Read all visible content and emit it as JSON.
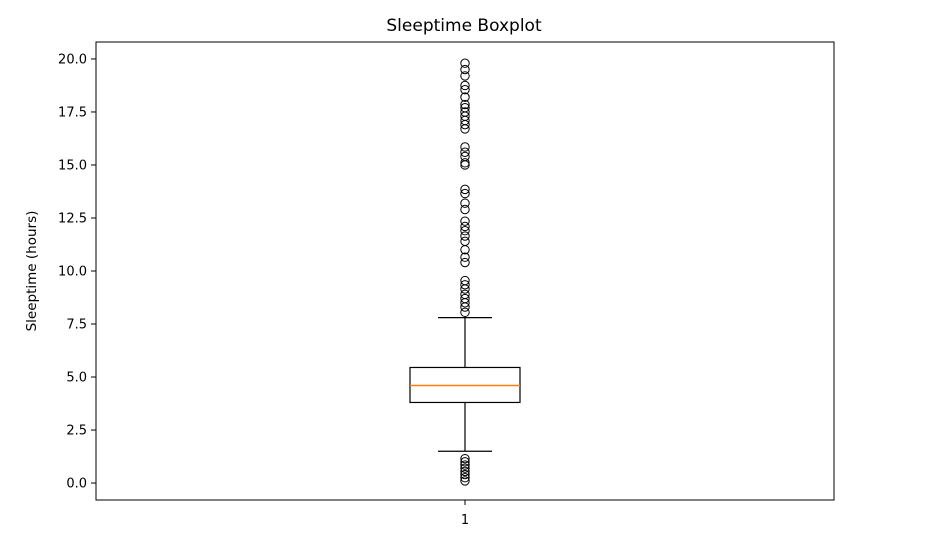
{
  "chart_data": {
    "type": "boxplot",
    "title": "Sleeptime Boxplot",
    "xlabel": "",
    "ylabel": "Sleeptime (hours)",
    "x_categories": [
      "1"
    ],
    "ylim": [
      -0.8,
      20.8
    ],
    "yticks": [
      0.0,
      2.5,
      5.0,
      7.5,
      10.0,
      12.5,
      15.0,
      17.5,
      20.0
    ],
    "ytick_labels": [
      "0.0",
      "2.5",
      "5.0",
      "7.5",
      "10.0",
      "12.5",
      "15.0",
      "17.5",
      "20.0"
    ],
    "grid": false,
    "box": {
      "category": "1",
      "whisker_low": 1.5,
      "q1": 3.8,
      "median": 4.6,
      "q3": 5.45,
      "whisker_high": 7.8,
      "outliers": [
        0.1,
        0.25,
        0.4,
        0.55,
        0.7,
        0.85,
        1.0,
        1.15,
        8.05,
        8.3,
        8.5,
        8.7,
        8.9,
        9.15,
        9.35,
        9.55,
        10.4,
        10.65,
        11.0,
        11.4,
        11.65,
        11.9,
        12.1,
        12.35,
        12.9,
        13.2,
        13.65,
        13.85,
        15.0,
        15.1,
        15.4,
        15.6,
        15.85,
        16.7,
        16.9,
        17.1,
        17.3,
        17.5,
        17.7,
        17.85,
        18.2,
        18.55,
        18.75,
        19.2,
        19.5,
        19.8
      ]
    },
    "colors": {
      "median": "#ff7f0e",
      "box": "#000000",
      "outlier_edge": "#000000"
    }
  }
}
